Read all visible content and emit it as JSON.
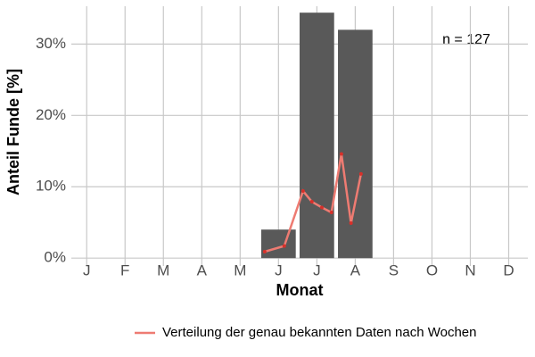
{
  "chart_data": {
    "type": "combo",
    "x_label": "Monat",
    "y_label": "Anteil Funde [%]",
    "annotation": "n = 127",
    "xlim": [
      0.6,
      12.5
    ],
    "xticks": [
      {
        "value": 1,
        "label": "J"
      },
      {
        "value": 2,
        "label": "F"
      },
      {
        "value": 3,
        "label": "M"
      },
      {
        "value": 4,
        "label": "A"
      },
      {
        "value": 5,
        "label": "M"
      },
      {
        "value": 6,
        "label": "J"
      },
      {
        "value": 7,
        "label": "J"
      },
      {
        "value": 8,
        "label": "A"
      },
      {
        "value": 9,
        "label": "S"
      },
      {
        "value": 10,
        "label": "O"
      },
      {
        "value": 11,
        "label": "N"
      },
      {
        "value": 12,
        "label": "D"
      }
    ],
    "ylim": [
      -1.1,
      35.3
    ],
    "yticks": [
      {
        "value": 0,
        "label": "0%"
      },
      {
        "value": 10,
        "label": "10%"
      },
      {
        "value": 20,
        "label": "20%"
      },
      {
        "value": 30,
        "label": "30%"
      }
    ],
    "grid": true,
    "legend": "bottom",
    "series": [
      {
        "type": "bar",
        "color": "#595959",
        "x": [
          6,
          7,
          8
        ],
        "values": [
          4.0,
          34.4,
          32.0
        ]
      },
      {
        "type": "line",
        "name": "Verteilung der genau bekannten Daten nach Wochen",
        "color": "#ee7b72",
        "point_color": "#d7302a",
        "x": [
          5.64,
          6.15,
          6.64,
          6.87,
          7.13,
          7.38,
          7.64,
          7.89,
          8.15
        ],
        "values": [
          0.9,
          1.7,
          9.4,
          7.9,
          7.1,
          6.4,
          14.6,
          4.9,
          11.8
        ]
      }
    ]
  }
}
